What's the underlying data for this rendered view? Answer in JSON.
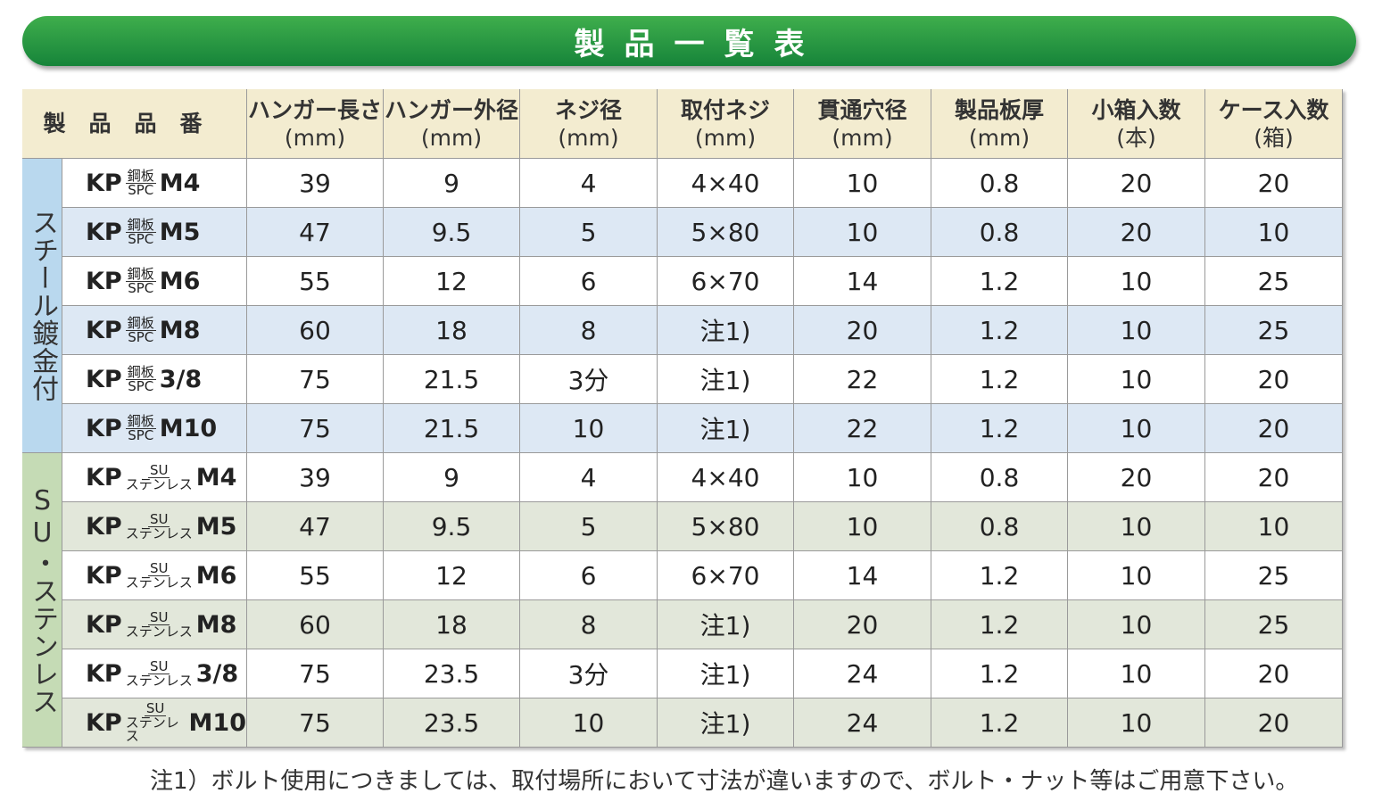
{
  "title": "製品一覧表",
  "table": {
    "headers": [
      {
        "label": "製品品番"
      },
      {
        "label": "ハンガー長さ",
        "unit": "(mm)"
      },
      {
        "label": "ハンガー外径",
        "unit": "(mm)"
      },
      {
        "label": "ネジ径",
        "unit": "(mm)"
      },
      {
        "label": "取付ネジ",
        "unit": "(mm)"
      },
      {
        "label": "貫通穴径",
        "unit": "(mm)"
      },
      {
        "label": "製品板厚",
        "unit": "(mm)"
      },
      {
        "label": "小箱入数",
        "unit": "(本)"
      },
      {
        "label": "ケース入数",
        "unit": "(箱)"
      }
    ],
    "groups": [
      {
        "label": "スチール鍍金付",
        "rows": [
          {
            "name": {
              "prefix": "KP",
              "top": "鋼板",
              "bottom": "SPC",
              "size": "M4"
            },
            "cells": [
              39,
              9,
              4,
              "4×40",
              10,
              0.8,
              20,
              20
            ]
          },
          {
            "name": {
              "prefix": "KP",
              "top": "鋼板",
              "bottom": "SPC",
              "size": "M5"
            },
            "cells": [
              47,
              9.5,
              5,
              "5×80",
              10,
              0.8,
              20,
              10
            ]
          },
          {
            "name": {
              "prefix": "KP",
              "top": "鋼板",
              "bottom": "SPC",
              "size": "M6"
            },
            "cells": [
              55,
              12,
              6,
              "6×70",
              14,
              1.2,
              10,
              25
            ]
          },
          {
            "name": {
              "prefix": "KP",
              "top": "鋼板",
              "bottom": "SPC",
              "size": "M8"
            },
            "cells": [
              60,
              18,
              8,
              "注1)",
              20,
              1.2,
              10,
              25
            ]
          },
          {
            "name": {
              "prefix": "KP",
              "top": "鋼板",
              "bottom": "SPC",
              "size": "3/8"
            },
            "cells": [
              75,
              21.5,
              "3分",
              "注1)",
              22,
              1.2,
              10,
              20
            ]
          },
          {
            "name": {
              "prefix": "KP",
              "top": "鋼板",
              "bottom": "SPC",
              "size": "M10"
            },
            "cells": [
              75,
              21.5,
              10,
              "注1)",
              22,
              1.2,
              10,
              20
            ]
          }
        ]
      },
      {
        "label": "SU・ステンレス",
        "rows": [
          {
            "name": {
              "prefix": "KP",
              "top": "SU",
              "bottom": "ステンレス",
              "size": "M4"
            },
            "cells": [
              39,
              9,
              4,
              "4×40",
              10,
              0.8,
              20,
              20
            ]
          },
          {
            "name": {
              "prefix": "KP",
              "top": "SU",
              "bottom": "ステンレス",
              "size": "M5"
            },
            "cells": [
              47,
              9.5,
              5,
              "5×80",
              10,
              0.8,
              10,
              10
            ]
          },
          {
            "name": {
              "prefix": "KP",
              "top": "SU",
              "bottom": "ステンレス",
              "size": "M6"
            },
            "cells": [
              55,
              12,
              6,
              "6×70",
              14,
              1.2,
              10,
              25
            ]
          },
          {
            "name": {
              "prefix": "KP",
              "top": "SU",
              "bottom": "ステンレス",
              "size": "M8"
            },
            "cells": [
              60,
              18,
              8,
              "注1)",
              20,
              1.2,
              10,
              25
            ]
          },
          {
            "name": {
              "prefix": "KP",
              "top": "SU",
              "bottom": "ステンレス",
              "size": "3/8"
            },
            "cells": [
              75,
              23.5,
              "3分",
              "注1)",
              24,
              1.2,
              10,
              20
            ]
          },
          {
            "name": {
              "prefix": "KP",
              "top": "SU",
              "bottom": "ステンレス",
              "size": "M10"
            },
            "cells": [
              75,
              23.5,
              10,
              "注1)",
              24,
              1.2,
              10,
              20
            ]
          }
        ]
      }
    ]
  },
  "footnote": "注1）ボルト使用につきましては、取付場所において寸法が違いますので、ボルト・ナット等はご用意下さい。"
}
